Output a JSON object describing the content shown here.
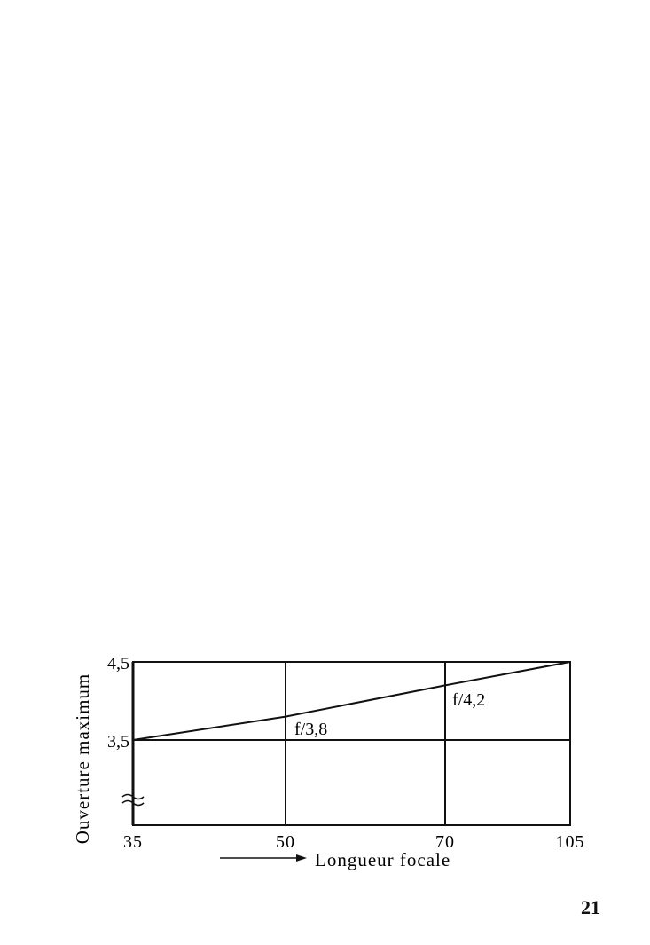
{
  "chart_data": {
    "type": "line",
    "title": "",
    "xlabel": "Longueur focale",
    "ylabel": "Ouverture maximum",
    "x_tick_labels": [
      "35",
      "50",
      "70",
      "105"
    ],
    "y_tick_labels": [
      "3,5",
      "4,5"
    ],
    "ylim": [
      3.5,
      4.5
    ],
    "y_axis_broken": true,
    "grid": true,
    "series": [
      {
        "x": [
          35,
          50,
          70,
          105
        ],
        "y": [
          3.5,
          3.8,
          4.2,
          4.5
        ]
      }
    ],
    "annotations": [
      {
        "text": "f/3,8",
        "x": 50,
        "y": 3.8
      },
      {
        "text": "f/4,2",
        "x": 70,
        "y": 4.2
      }
    ],
    "line_color": "#111111"
  },
  "page": {
    "number": "21"
  }
}
